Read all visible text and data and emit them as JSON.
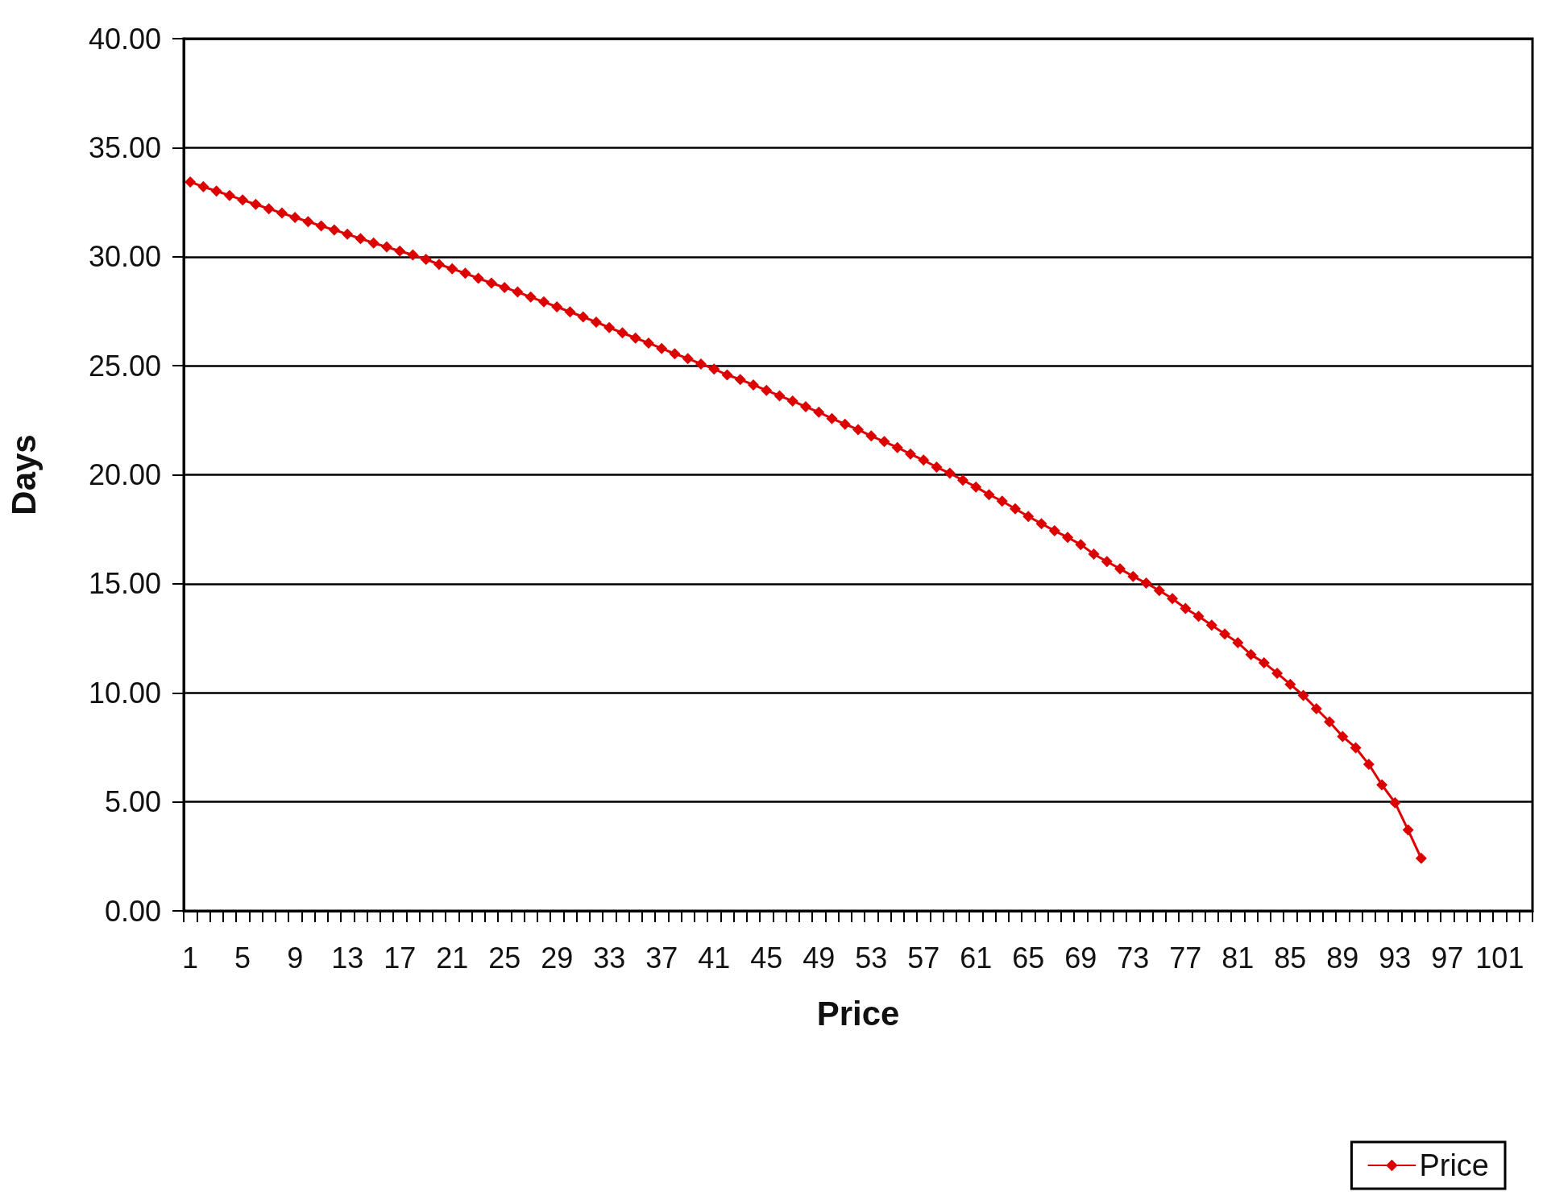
{
  "chart_data": {
    "type": "line",
    "xlabel": "Price",
    "ylabel": "Days",
    "categories": [
      "1",
      null,
      null,
      null,
      "5",
      null,
      null,
      null,
      "9",
      null,
      null,
      null,
      "13",
      null,
      null,
      null,
      "17",
      null,
      null,
      null,
      "21",
      null,
      null,
      null,
      "25",
      null,
      null,
      null,
      "29",
      null,
      null,
      null,
      "33",
      null,
      null,
      null,
      "37",
      null,
      null,
      null,
      "41",
      null,
      null,
      null,
      "45",
      null,
      null,
      null,
      "49",
      null,
      null,
      null,
      "53",
      null,
      null,
      null,
      "57",
      null,
      null,
      null,
      "61",
      null,
      null,
      null,
      "65",
      null,
      null,
      null,
      "69",
      null,
      null,
      null,
      "73",
      null,
      null,
      null,
      "77",
      null,
      null,
      null,
      "81",
      null,
      null,
      null,
      "85",
      null,
      null,
      null,
      "89",
      null,
      null,
      null,
      "93",
      null,
      null,
      null,
      "97",
      null,
      null,
      null,
      "101",
      null,
      null
    ],
    "series": [
      {
        "name": "Price",
        "color": "#dc0000",
        "values": [
          33.43,
          33.21,
          33.01,
          32.81,
          32.6,
          32.4,
          32.2,
          32.0,
          31.8,
          31.61,
          31.41,
          31.23,
          31.03,
          30.83,
          30.63,
          30.45,
          30.26,
          30.08,
          29.88,
          29.65,
          29.45,
          29.24,
          29.01,
          28.79,
          28.59,
          28.38,
          28.15,
          27.93,
          27.7,
          27.47,
          27.24,
          27.0,
          26.75,
          26.51,
          26.27,
          26.04,
          25.79,
          25.55,
          25.33,
          25.08,
          24.85,
          24.58,
          24.37,
          24.12,
          23.87,
          23.62,
          23.38,
          23.12,
          22.87,
          22.58,
          22.32,
          22.07,
          21.78,
          21.52,
          21.25,
          20.95,
          20.67,
          20.35,
          20.07,
          19.75,
          19.44,
          19.09,
          18.79,
          18.44,
          18.09,
          17.76,
          17.43,
          17.13,
          16.8,
          16.36,
          16.02,
          15.69,
          15.34,
          15.03,
          14.69,
          14.32,
          13.87,
          13.51,
          13.1,
          12.7,
          12.3,
          11.75,
          11.38,
          10.9,
          10.39,
          9.88,
          9.27,
          8.67,
          8.0,
          7.48,
          6.72,
          5.78,
          4.96,
          3.71,
          2.41,
          null,
          null,
          null,
          null,
          null,
          null,
          null,
          null
        ]
      }
    ],
    "ylim": [
      0,
      40
    ],
    "yticks": [
      {
        "value": 0,
        "label": "0.00"
      },
      {
        "value": 5,
        "label": "5.00"
      },
      {
        "value": 10,
        "label": "10.00"
      },
      {
        "value": 15,
        "label": "15.00"
      },
      {
        "value": 20,
        "label": "20.00"
      },
      {
        "value": 25,
        "label": "25.00"
      },
      {
        "value": 30,
        "label": "30.00"
      },
      {
        "value": 35,
        "label": "35.00"
      },
      {
        "value": 40,
        "label": "40.00"
      }
    ],
    "grid": "y",
    "legend": "bottom right",
    "marker": "diamond",
    "line_style": "solid"
  }
}
